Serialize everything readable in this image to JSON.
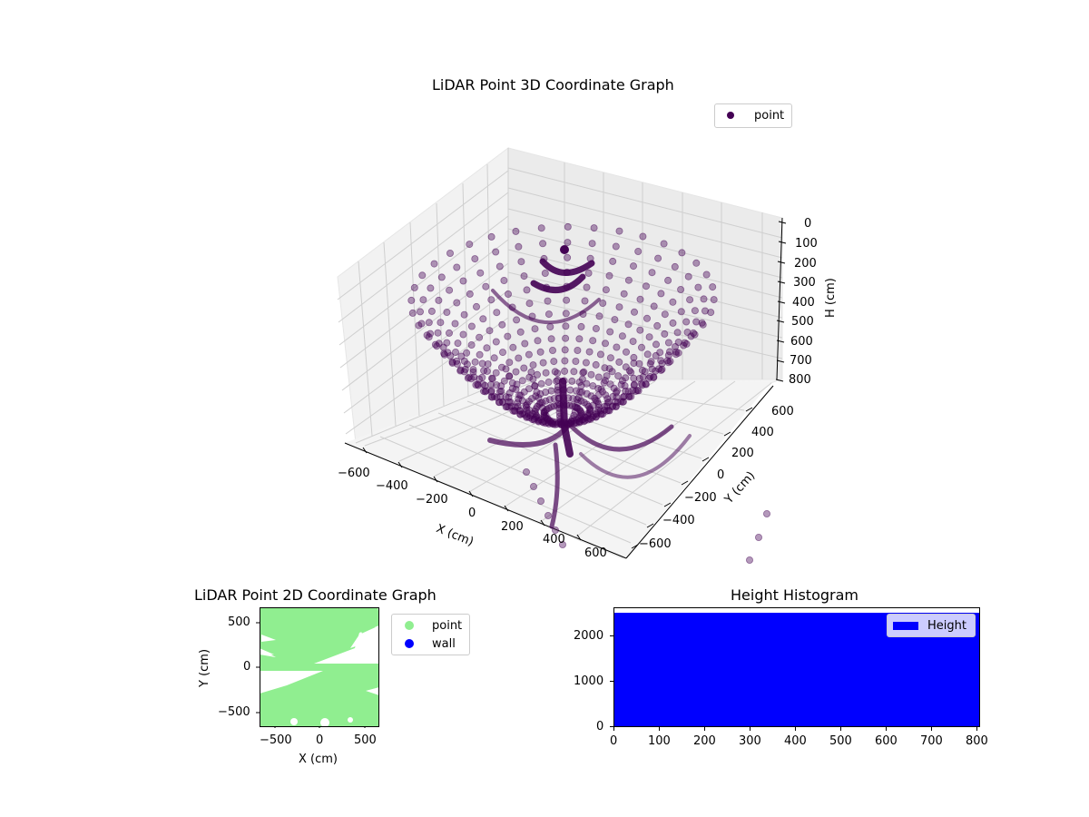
{
  "chart_data": [
    {
      "type": "scatter",
      "projection": "3d",
      "title": "LiDAR Point 3D Coordinate Graph",
      "xlabel": "X (cm)",
      "ylabel": "Y (cm)",
      "zlabel": "H (cm)",
      "x_ticks": [
        "−600",
        "−400",
        "−200",
        "0",
        "200",
        "400",
        "600"
      ],
      "y_ticks": [
        "−600",
        "−400",
        "−200",
        "0",
        "200",
        "400",
        "600"
      ],
      "z_ticks": [
        "0",
        "100",
        "200",
        "300",
        "400",
        "500",
        "600",
        "700",
        "800"
      ],
      "xlim": [
        -650,
        650
      ],
      "ylim": [
        -650,
        650
      ],
      "zlim": [
        800,
        0
      ],
      "z_inverted": true,
      "grid": true,
      "legend": [
        {
          "label": "point",
          "color": "#440154"
        }
      ],
      "legend_position": "upper right",
      "marker_color": "#440154",
      "marker_alpha": 0.4,
      "description": "Dome-shaped radial scan: ~36 radial rays of points fanning out from a dense center near (0,0,~600) up to a rim at H≈100-200 with radius ≈600 cm"
    },
    {
      "type": "scatter",
      "title": "LiDAR Point 2D Coordinate Graph",
      "xlabel": "X (cm)",
      "ylabel": "Y (cm)",
      "x_ticks": [
        "−500",
        "0",
        "500"
      ],
      "y_ticks": [
        "−500",
        "0",
        "500"
      ],
      "xlim": [
        -670,
        670
      ],
      "ylim": [
        -670,
        670
      ],
      "grid": false,
      "series": [
        {
          "name": "point",
          "color": "#90ee90"
        },
        {
          "name": "wall",
          "color": "#0000ff"
        }
      ],
      "legend": [
        {
          "label": "point",
          "color": "#90ee90"
        },
        {
          "label": "wall",
          "color": "#0000ff"
        }
      ],
      "legend_position": "outside right"
    },
    {
      "type": "bar",
      "title": "Height Histogram",
      "xlabel": "",
      "ylabel": "",
      "x_ticks": [
        "0",
        "100",
        "200",
        "300",
        "400",
        "500",
        "600",
        "700",
        "800"
      ],
      "y_ticks": [
        "0",
        "1000",
        "2000"
      ],
      "xlim": [
        0,
        810
      ],
      "ylim": [
        0,
        2620
      ],
      "categories": [
        "0-810"
      ],
      "values": [
        2500
      ],
      "series": [
        {
          "name": "Height",
          "color": "#0000ff",
          "values": [
            2500
          ]
        }
      ],
      "legend": [
        {
          "label": "Height",
          "color": "#0000ff"
        }
      ],
      "legend_position": "upper right",
      "grid": false
    }
  ],
  "plot3d": {
    "title": "LiDAR Point 3D Coordinate Graph",
    "legend_label": "point",
    "xlabel": "X (cm)",
    "ylabel": "Y (cm)",
    "zlabel": "H (cm)",
    "x_ticks": [
      "−600",
      "−400",
      "−200",
      "0",
      "200",
      "400",
      "600"
    ],
    "y_ticks": [
      "−600",
      "−400",
      "−200",
      "0",
      "200",
      "400",
      "600"
    ],
    "z_ticks": [
      "0",
      "100",
      "200",
      "300",
      "400",
      "500",
      "600",
      "700",
      "800"
    ]
  },
  "plot2d": {
    "title": "LiDAR Point 2D Coordinate Graph",
    "xlabel": "X (cm)",
    "ylabel": "Y (cm)",
    "x_ticks": [
      "−500",
      "0",
      "500"
    ],
    "y_ticks": [
      "−500",
      "0",
      "500"
    ],
    "legend": [
      "point",
      "wall"
    ]
  },
  "hist": {
    "title": "Height Histogram",
    "legend_label": "Height",
    "x_ticks": [
      "0",
      "100",
      "200",
      "300",
      "400",
      "500",
      "600",
      "700",
      "800"
    ],
    "y_ticks": [
      "0",
      "1000",
      "2000"
    ]
  }
}
